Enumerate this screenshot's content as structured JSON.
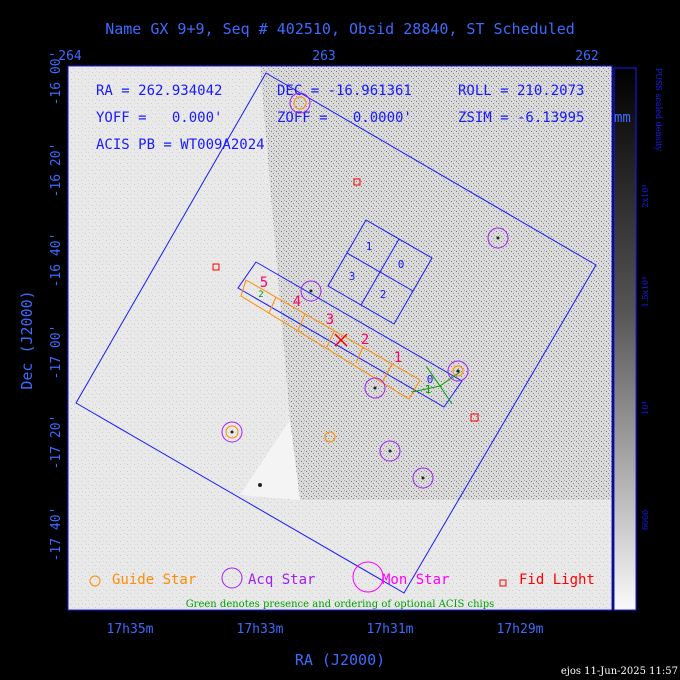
{
  "chart_data": {
    "type": "scatter",
    "title": "Name GX 9+9, Seq # 402510, Obsid 28840, ST Scheduled",
    "xlabel": "RA (J2000)",
    "ylabel": "Dec (J2000)",
    "top_ticks": [
      "264",
      "263",
      "262"
    ],
    "bottom_ticks": [
      "17h35m",
      "17h33m",
      "17h31m",
      "17h29m"
    ],
    "left_ticks": [
      "-16 00'",
      "-16 20'",
      "-16 40'",
      "-17 00'",
      "-17 20'",
      "-17 40'"
    ],
    "info": {
      "ra": "RA = 262.934042",
      "dec": "DEC = -16.961361",
      "roll": "ROLL = 210.2073",
      "yoff": "YOFF =   0.000'",
      "zoff": "ZOFF =   0.0000'",
      "zsim": "ZSIM = -6.13995",
      "zsim_overflow": "mm",
      "acis": "ACIS PB = WT009A2024"
    },
    "colorbar": {
      "label": "PUSS scaled density",
      "ticks": [
        "2x10⁴",
        "1.5x10⁴",
        "10⁴",
        "6000"
      ]
    },
    "legend": {
      "placement": "bottom",
      "guide": "Guide Star",
      "acq": "Acq Star",
      "mon": "Mon Star",
      "fid": "Fid Light",
      "note": "Green denotes presence and ordering of optional ACIS chips"
    },
    "acis_i_chips": [
      "0",
      "1",
      "2",
      "3"
    ],
    "acis_s_chips": [
      "0",
      "1",
      "2",
      "3",
      "4",
      "5"
    ],
    "acis_s_optional_chips": [
      "1",
      "2"
    ],
    "colors": {
      "frame": "#1a1aff",
      "guide": "#ff8c00",
      "acq": "#a020f0",
      "mon": "#ff00ff",
      "fid": "#ff0000",
      "optional": "#00a000",
      "acis_s": "#ff8c00",
      "acis_s_labels": "#ff0066"
    },
    "footer": "ejos 11-Jun-2025 11:57"
  }
}
